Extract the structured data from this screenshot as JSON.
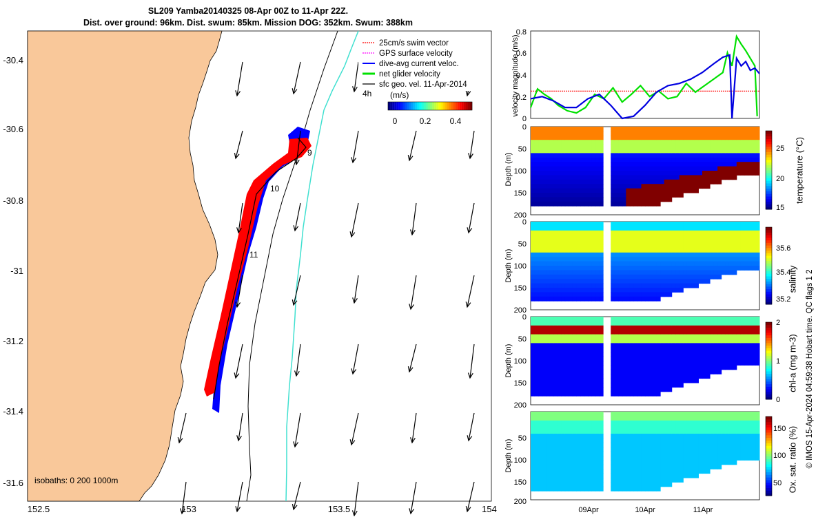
{
  "header": {
    "line1": "SL209 Yamba20140325 08-Apr 00Z to 11-Apr 22Z.",
    "line2": "Dist. over ground: 96km. Dist. swum: 85km. Mission DOG: 352km. Swum: 388km"
  },
  "map": {
    "lon_ticks": [
      "152.5",
      "153",
      "153.5",
      "154"
    ],
    "lat_ticks": [
      "-30.4",
      "-30.6",
      "-30.8",
      "-31",
      "-31.2",
      "-31.4",
      "-31.6"
    ],
    "legend": [
      "25cm/s swim vector",
      "GPS surface velocity",
      "dive-avg current veloc.",
      "net glider velocity",
      "sfc geo. vel. 11-Apr-2014"
    ],
    "scale_label": "4h",
    "colorbar_label": "(m/s)",
    "colorbar_ticks": [
      "0",
      "0.2",
      "0.4"
    ],
    "isobath_label": "isobaths: 0   200  1000m",
    "day_labels": [
      "9",
      "10",
      "11"
    ],
    "colors": {
      "land": "#f9c89a",
      "track_red": "#ff0000",
      "track_blue": "#0000ff",
      "isobath_cyan": "#40e0d0",
      "vectors": "#000000"
    }
  },
  "copyright": "© IMOS 15-Apr-2024 04:59:38 Hobart time. QC flags 1  2",
  "chart_data": [
    {
      "type": "line",
      "ylabel": "velocity magnitude (m/s)",
      "ylim": [
        0,
        0.8
      ],
      "yticks": [
        "0",
        "0.2",
        "0.4",
        "0.6",
        "0.8"
      ],
      "series": [
        {
          "color": "#ff0000",
          "x": [
            0,
            1
          ],
          "values": [
            0.25,
            0.25
          ]
        },
        {
          "color": "#00e000",
          "x": [
            0,
            0.03,
            0.06,
            0.09,
            0.12,
            0.16,
            0.2,
            0.24,
            0.28,
            0.32,
            0.36,
            0.4,
            0.44,
            0.48,
            0.52,
            0.56,
            0.6,
            0.64,
            0.68,
            0.72,
            0.76,
            0.8,
            0.84,
            0.86,
            0.88,
            0.9,
            0.92,
            0.94,
            0.96,
            0.98,
            0.99
          ],
          "values": [
            0.1,
            0.27,
            0.22,
            0.18,
            0.12,
            0.07,
            0.05,
            0.1,
            0.22,
            0.18,
            0.28,
            0.15,
            0.22,
            0.3,
            0.2,
            0.25,
            0.18,
            0.2,
            0.32,
            0.24,
            0.3,
            0.36,
            0.42,
            0.6,
            0.48,
            0.75,
            0.68,
            0.62,
            0.55,
            0.48,
            0.02
          ]
        },
        {
          "color": "#0000e0",
          "x": [
            0,
            0.05,
            0.1,
            0.15,
            0.2,
            0.25,
            0.3,
            0.35,
            0.4,
            0.45,
            0.5,
            0.55,
            0.6,
            0.65,
            0.7,
            0.75,
            0.8,
            0.84,
            0.87,
            0.88,
            0.9,
            0.92,
            0.94,
            0.96,
            0.98,
            1.0
          ],
          "values": [
            0.18,
            0.2,
            0.16,
            0.1,
            0.1,
            0.18,
            0.22,
            0.12,
            0.0,
            0.02,
            0.12,
            0.24,
            0.3,
            0.32,
            0.36,
            0.42,
            0.5,
            0.56,
            0.58,
            0.0,
            0.55,
            0.48,
            0.52,
            0.44,
            0.46,
            0.41
          ]
        }
      ]
    },
    {
      "type": "heatmap",
      "ylabel": "Depth (m)",
      "colorbar_label": "temperature (°C)",
      "ylim": [
        200,
        0
      ],
      "yticks": [
        "0",
        "50",
        "100",
        "150",
        "200"
      ],
      "colorbar_ticks": [
        "15",
        "20",
        "25"
      ]
    },
    {
      "type": "heatmap",
      "ylabel": "Depth (m)",
      "colorbar_label": "salinity",
      "ylim": [
        200,
        0
      ],
      "yticks": [
        "0",
        "50",
        "100",
        "150",
        "200"
      ],
      "colorbar_ticks": [
        "35.2",
        "35.4",
        "35.6"
      ]
    },
    {
      "type": "heatmap",
      "ylabel": "Depth (m)",
      "colorbar_label": "chl-a (mg m-3)",
      "ylim": [
        200,
        0
      ],
      "yticks": [
        "0",
        "50",
        "100",
        "150",
        "200"
      ],
      "colorbar_ticks": [
        "0",
        "1",
        "2"
      ]
    },
    {
      "type": "heatmap",
      "ylabel": "Depth (m)",
      "colorbar_label": "Ox. sat. ratio (%)",
      "ylim": [
        200,
        0
      ],
      "yticks": [
        "50",
        "100",
        "150",
        "200"
      ],
      "colorbar_ticks": [
        "50",
        "100",
        "150"
      ],
      "x_ticks": [
        "09Apr",
        "10Apr",
        "11Apr"
      ]
    }
  ]
}
